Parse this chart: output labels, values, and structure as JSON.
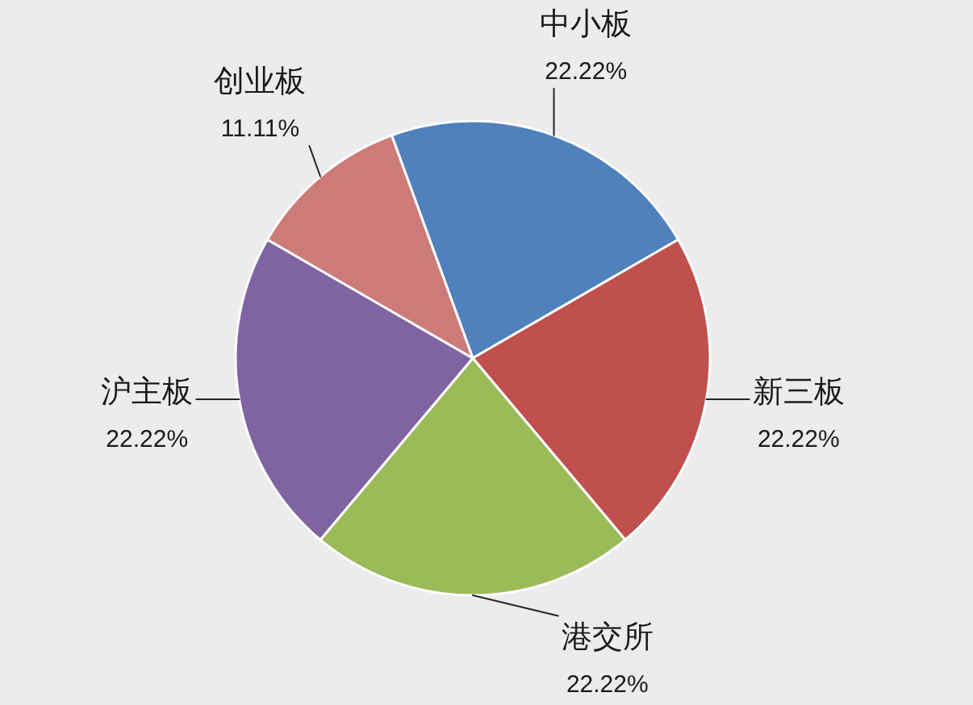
{
  "chart_data": {
    "type": "pie",
    "categories": [
      "中小板",
      "新三板",
      "港交所",
      "沪主板",
      "创业板"
    ],
    "values": [
      22.22,
      22.22,
      22.22,
      22.22,
      11.11
    ],
    "colors": [
      "#4f81bd",
      "#c0504d",
      "#9bbb59",
      "#8064a2",
      "#cc7b79"
    ],
    "value_labels": [
      "22.22%",
      "22.22%",
      "22.22%",
      "22.22%",
      "11.11%"
    ]
  }
}
